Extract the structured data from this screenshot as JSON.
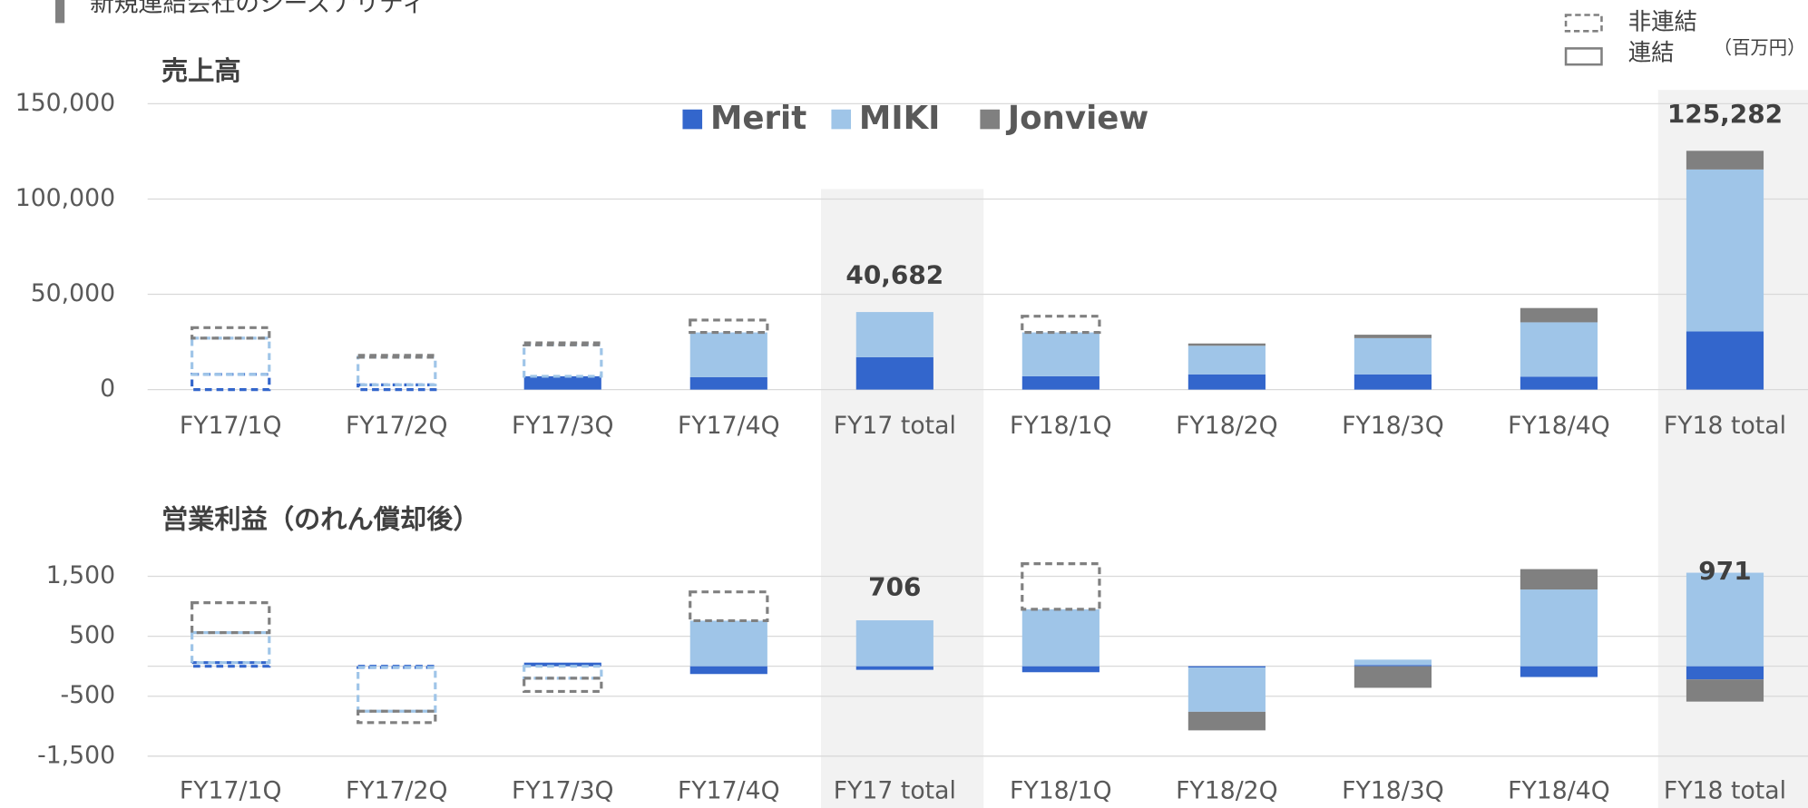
{
  "header": {
    "title": "新規連結会社のシーズナリティ"
  },
  "legend": {
    "dashed": "非連結",
    "solid": "連結"
  },
  "unit": "（百万円）",
  "chart_data": [
    {
      "type": "bar",
      "stacked": true,
      "title": "売上高",
      "legend_position": "top-center",
      "categories": [
        "FY17/1Q",
        "FY17/2Q",
        "FY17/3Q",
        "FY17/4Q",
        "FY17 total",
        "FY18/1Q",
        "FY18/2Q",
        "FY18/3Q",
        "FY18/4Q",
        "FY18 total"
      ],
      "series": [
        {
          "name": "Merit",
          "color": "#3366cc",
          "values": [
            8000,
            2500,
            7000,
            6500,
            17000,
            7000,
            8000,
            8000,
            6800,
            30500
          ],
          "dashed": [
            true,
            true,
            false,
            false,
            false,
            false,
            false,
            false,
            false,
            false
          ]
        },
        {
          "name": "MIKI",
          "color": "#9fc5e8",
          "values": [
            19000,
            14500,
            16500,
            23500,
            23700,
            23000,
            15000,
            19000,
            28500,
            85000
          ],
          "dashed": [
            true,
            true,
            true,
            false,
            false,
            false,
            false,
            false,
            false,
            false
          ]
        },
        {
          "name": "Jonview",
          "color": "#808080",
          "values": [
            5500,
            1000,
            1000,
            6500,
            0,
            8500,
            1200,
            1800,
            7500,
            9800
          ],
          "dashed": [
            true,
            true,
            true,
            true,
            false,
            true,
            false,
            false,
            false,
            false
          ]
        }
      ],
      "totals": [
        null,
        null,
        null,
        null,
        40682,
        null,
        null,
        null,
        null,
        125282
      ],
      "total_labels": [
        null,
        null,
        null,
        null,
        "40,682",
        null,
        null,
        null,
        null,
        "125,282"
      ],
      "ylim": [
        0,
        150000
      ],
      "yticks": [
        0,
        {
          "value": 50000,
          "label": "50,000"
        },
        {
          "value": 100000,
          "label": "100,000"
        },
        {
          "value": 150000,
          "label": "150,000"
        }
      ],
      "grid": true
    },
    {
      "type": "bar",
      "stacked": true,
      "title": "営業利益（のれん償却後）",
      "categories": [
        "FY17/1Q",
        "FY17/2Q",
        "FY17/3Q",
        "FY17/4Q",
        "FY17 total",
        "FY18/1Q",
        "FY18/2Q",
        "FY18/3Q",
        "FY18/4Q",
        "FY18 total"
      ],
      "series": [
        {
          "name": "Merit",
          "color": "#3366cc",
          "values": [
            60,
            -20,
            60,
            -130,
            -60,
            -100,
            -20,
            20,
            -180,
            -220
          ],
          "dashed": [
            true,
            true,
            false,
            false,
            false,
            false,
            false,
            false,
            false,
            false
          ]
        },
        {
          "name": "MIKI",
          "color": "#9fc5e8",
          "values": [
            500,
            -730,
            -200,
            760,
            766,
            950,
            -740,
            90,
            1280,
            1560
          ],
          "dashed": [
            true,
            true,
            true,
            false,
            false,
            false,
            false,
            false,
            false,
            false
          ]
        },
        {
          "name": "Jonview",
          "color": "#808080",
          "values": [
            500,
            -190,
            -220,
            480,
            0,
            760,
            -310,
            -360,
            340,
            -370
          ],
          "dashed": [
            true,
            true,
            true,
            true,
            false,
            true,
            false,
            false,
            false,
            false
          ]
        }
      ],
      "totals": [
        null,
        null,
        null,
        null,
        706,
        null,
        null,
        null,
        null,
        971
      ],
      "total_labels": [
        null,
        null,
        null,
        null,
        "706",
        null,
        null,
        null,
        null,
        "971"
      ],
      "ylim": [
        -1500,
        2000
      ],
      "yticks": [
        {
          "value": 1500,
          "label": "1,500"
        },
        500,
        -500,
        {
          "value": -1500,
          "label": "-1,500"
        }
      ],
      "grid": true,
      "baseline": true
    }
  ]
}
